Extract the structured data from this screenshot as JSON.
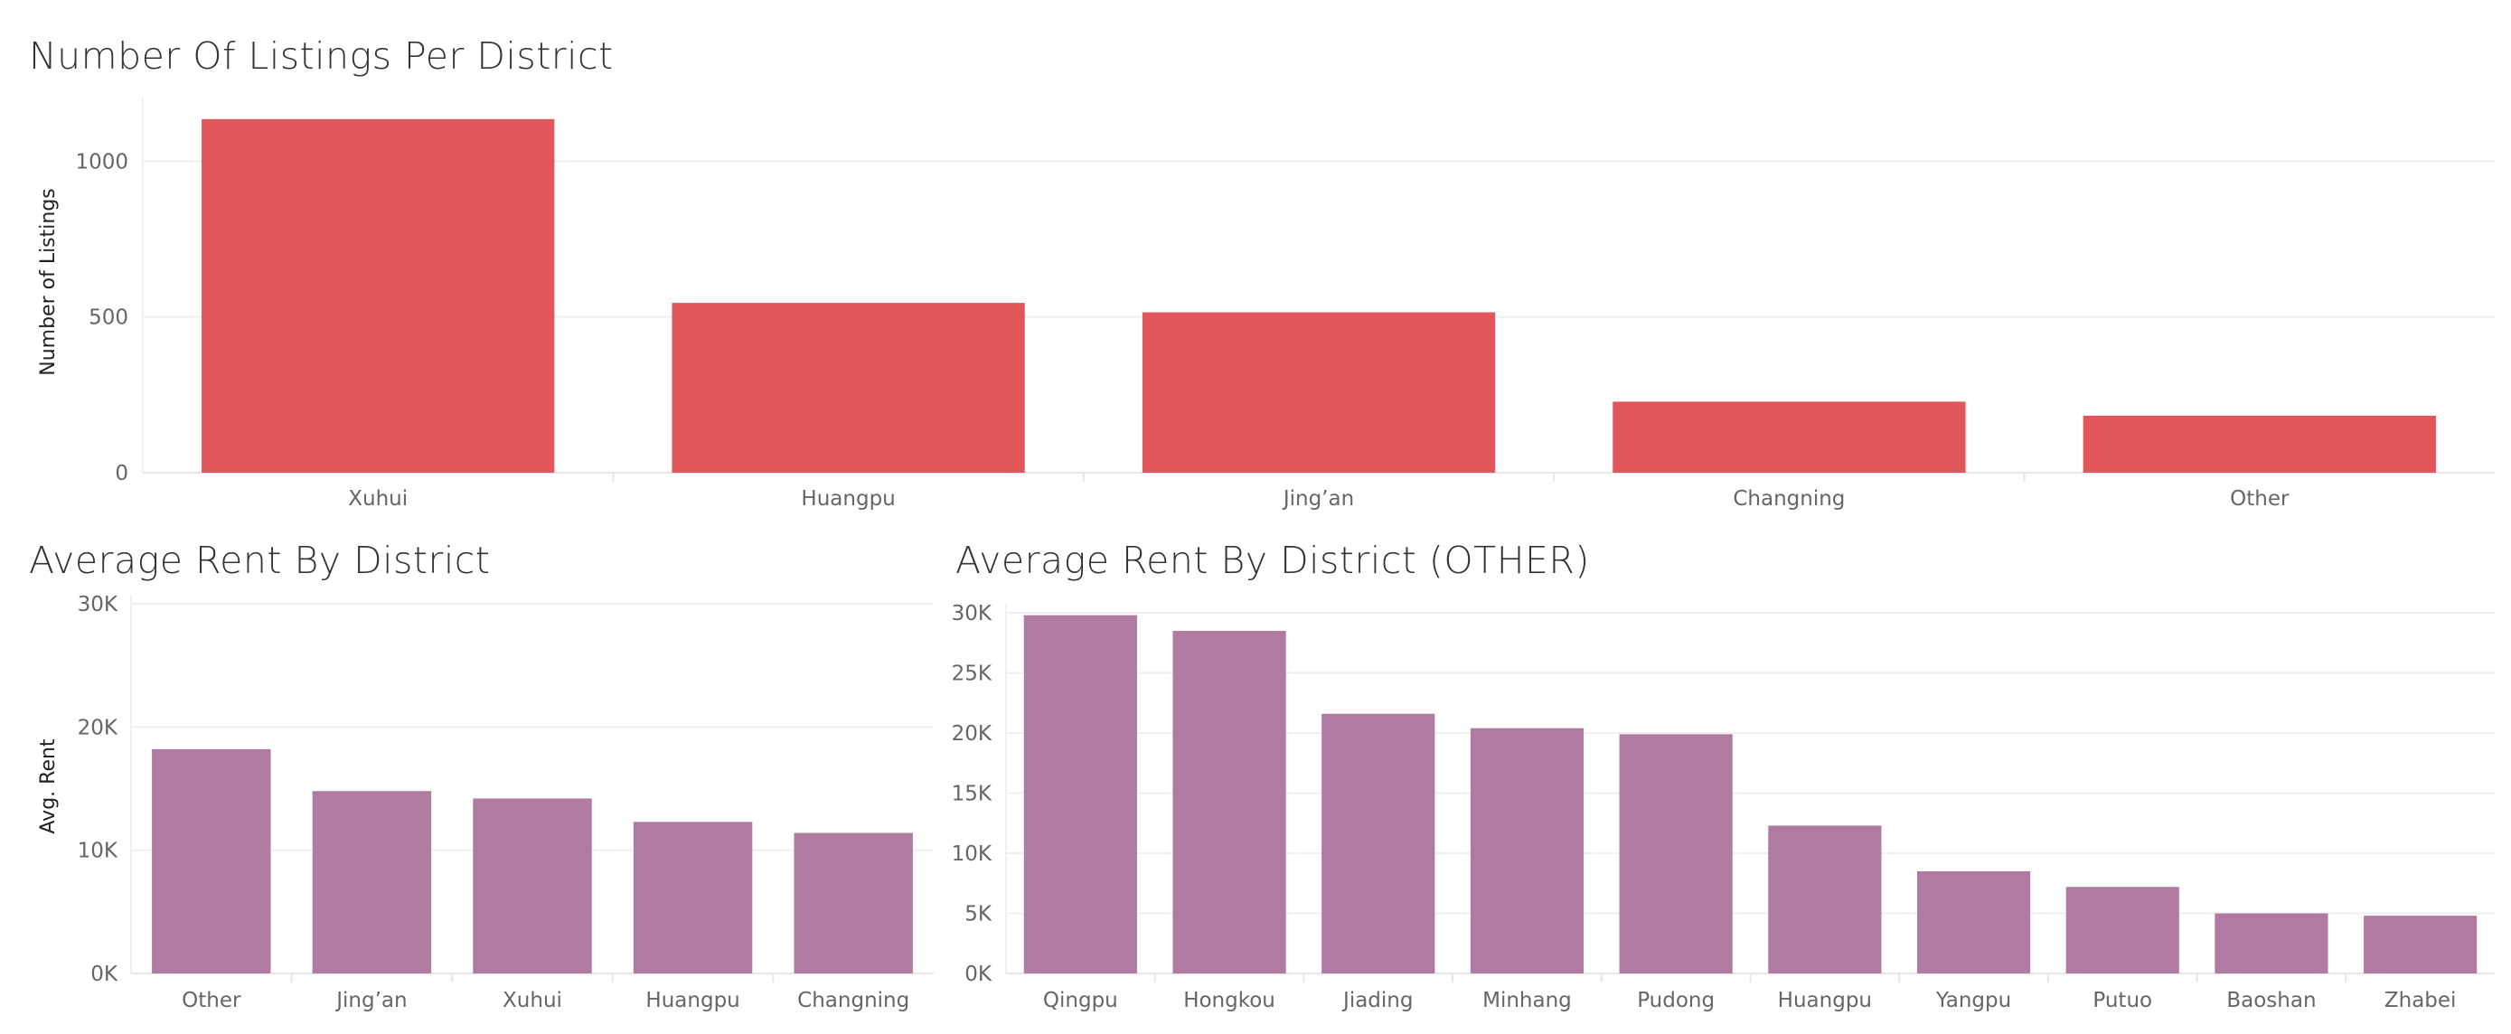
{
  "chart_data": [
    {
      "type": "bar",
      "title": "Number Of Listings Per District",
      "ylabel": "Number of Listings",
      "xlabel": "",
      "categories": [
        "Xuhui",
        "Huangpu",
        "Jing’an",
        "Changning",
        "Other"
      ],
      "values": [
        1135,
        545,
        515,
        228,
        183
      ],
      "ylim": [
        0,
        1175
      ],
      "yticks": [
        0,
        500,
        1000
      ],
      "ytick_labels": [
        "0",
        "500",
        "1000"
      ],
      "color": "#e0565b",
      "grid": true
    },
    {
      "type": "bar",
      "title": "Average Rent By District",
      "ylabel": "Avg. Rent",
      "xlabel": "",
      "categories": [
        "Other",
        "Jing’an",
        "Xuhui",
        "Huangpu",
        "Changning"
      ],
      "values": [
        18200,
        14800,
        14200,
        12300,
        11400
      ],
      "ylim": [
        0,
        30000
      ],
      "yticks": [
        0,
        10000,
        20000,
        30000
      ],
      "ytick_labels": [
        "0K",
        "10K",
        "20K",
        "30K"
      ],
      "color": "#b07aa1",
      "grid": true
    },
    {
      "type": "bar",
      "title": "Average Rent By District (OTHER)",
      "ylabel": "",
      "xlabel": "",
      "categories": [
        "Qingpu",
        "Hongkou",
        "Jiading",
        "Minhang",
        "Pudong",
        "Huangpu",
        "Yangpu",
        "Putuo",
        "Baoshan",
        "Zhabei"
      ],
      "values": [
        29800,
        28500,
        21600,
        20400,
        19900,
        12300,
        8500,
        7200,
        5000,
        4800
      ],
      "ylim": [
        0,
        30000
      ],
      "yticks": [
        0,
        5000,
        10000,
        15000,
        20000,
        25000,
        30000
      ],
      "ytick_labels": [
        "0K",
        "5K",
        "10K",
        "15K",
        "20K",
        "25K",
        "30K"
      ],
      "color": "#b07aa1",
      "grid": true
    }
  ]
}
